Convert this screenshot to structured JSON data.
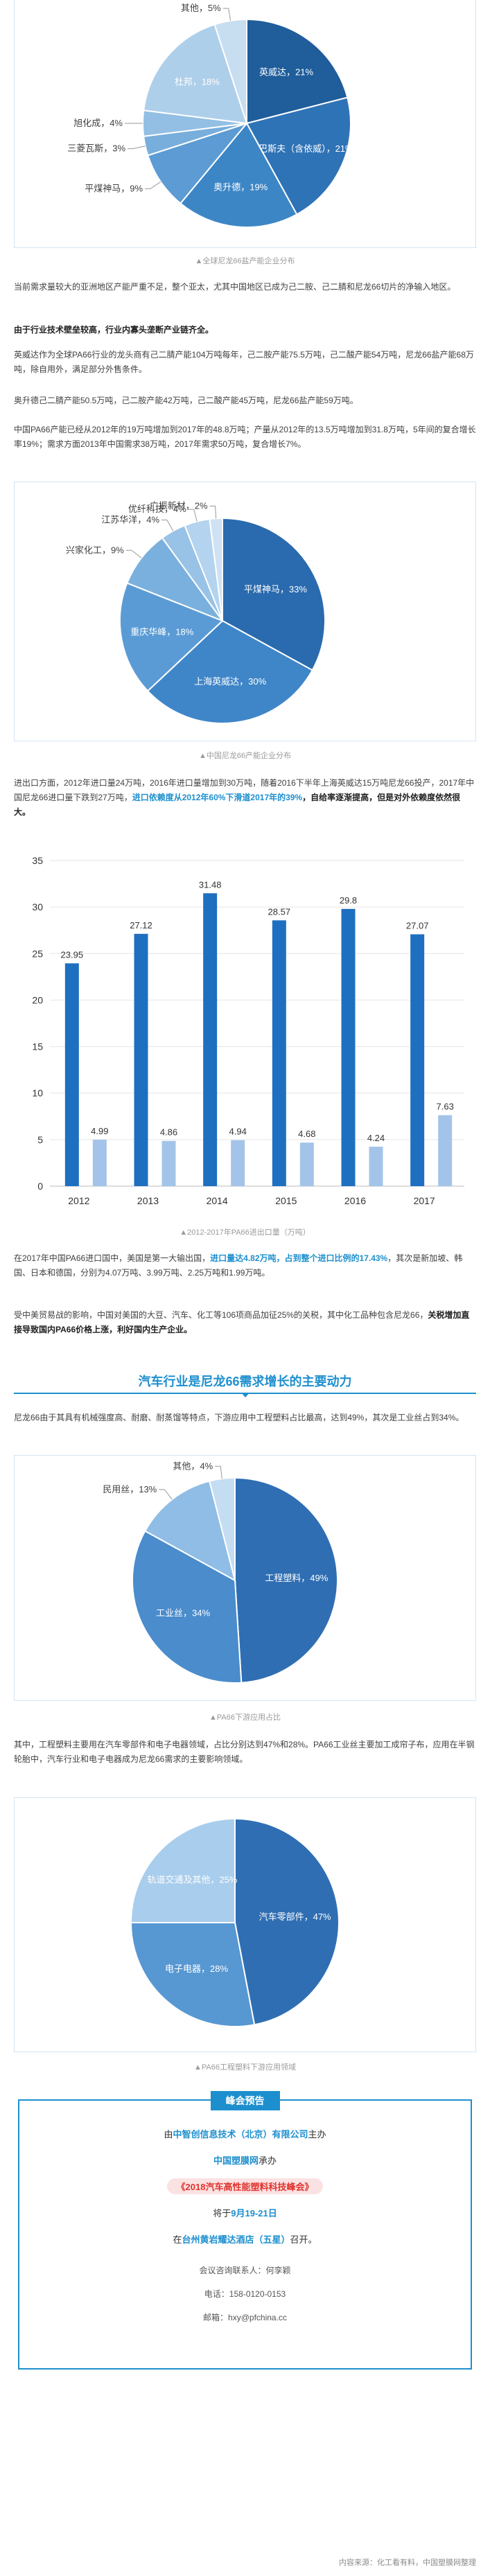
{
  "charts": {
    "pie1": {
      "caption": "▲全球尼龙66盐产能企业分布",
      "slices": [
        {
          "label": "英威达，21%",
          "value": 21,
          "color": "#1f5d9b"
        },
        {
          "label": "巴斯夫（含依威），21%",
          "value": 21,
          "color": "#2f73b7"
        },
        {
          "label": "奥升德，19%",
          "value": 19,
          "color": "#3d86c6"
        },
        {
          "label": "平煤神马，9%",
          "value": 9,
          "color": "#5c9bd3"
        },
        {
          "label": "三菱瓦斯，3%",
          "value": 3,
          "color": "#78aedc"
        },
        {
          "label": "旭化成，4%",
          "value": 4,
          "color": "#92bfe3"
        },
        {
          "label": "杜邦，18%",
          "value": 18,
          "color": "#aecfea"
        },
        {
          "label": "其他，5%",
          "value": 5,
          "color": "#c7def1"
        }
      ]
    },
    "pie2": {
      "caption": "▲中国尼龙66产能企业分布",
      "slices": [
        {
          "label": "平煤神马，33%",
          "value": 33,
          "color": "#2a6aae"
        },
        {
          "label": "上海英威达，30%",
          "value": 30,
          "color": "#3f86c8"
        },
        {
          "label": "重庆华峰，18%",
          "value": 18,
          "color": "#5a9bd5"
        },
        {
          "label": "兴家化工，9%",
          "value": 9,
          "color": "#7ab0de"
        },
        {
          "label": "江苏华洋，4%",
          "value": 4,
          "color": "#98c3e6"
        },
        {
          "label": "优纤科技，4%",
          "value": 4,
          "color": "#b3d3ee"
        },
        {
          "label": "广振新材，2%",
          "value": 2,
          "color": "#cfe2f4"
        }
      ]
    },
    "pie3": {
      "caption": "▲PA66下游应用占比",
      "slices": [
        {
          "label": "工程塑料，49%",
          "value": 49,
          "color": "#2f6eb3"
        },
        {
          "label": "工业丝，34%",
          "value": 34,
          "color": "#4a8ccc"
        },
        {
          "label": "民用丝，13%",
          "value": 13,
          "color": "#8fbde5"
        },
        {
          "label": "其他，4%",
          "value": 4,
          "color": "#c5ddf2"
        }
      ]
    },
    "pie4": {
      "caption": "▲PA66工程塑料下游应用领域",
      "slices": [
        {
          "label": "汽车零部件，47%",
          "value": 47,
          "color": "#2f6eb3"
        },
        {
          "label": "电子电器，28%",
          "value": 28,
          "color": "#5797d2"
        },
        {
          "label": "轨道交通及其他，25%",
          "value": 25,
          "color": "#a9cdec"
        }
      ]
    }
  },
  "chart_data": [
    {
      "type": "pie",
      "title": "",
      "categories": [
        "英威达",
        "巴斯夫（含依威）",
        "奥升德",
        "平煤神马",
        "三菱瓦斯",
        "旭化成",
        "杜邦",
        "其他"
      ],
      "values": [
        21,
        21,
        19,
        9,
        3,
        4,
        18,
        5
      ]
    },
    {
      "type": "pie",
      "title": "",
      "categories": [
        "平煤神马",
        "上海英威达",
        "重庆华峰",
        "兴家化工",
        "江苏华洋",
        "优纤科技",
        "广振新材"
      ],
      "values": [
        33,
        30,
        18,
        9,
        4,
        4,
        2
      ]
    },
    {
      "type": "bar",
      "title": "",
      "categories": [
        "2012",
        "2013",
        "2014",
        "2015",
        "2016",
        "2017"
      ],
      "series": [
        {
          "name": "",
          "values": [
            23.95,
            27.12,
            31.48,
            28.57,
            29.8,
            27.07
          ],
          "color": "#1f6fc0"
        },
        {
          "name": "",
          "values": [
            4.99,
            4.86,
            4.94,
            4.68,
            4.24,
            7.63
          ],
          "color": "#a3c4e8"
        }
      ],
      "ylim": [
        0,
        35
      ],
      "yticks": [
        0,
        5,
        10,
        15,
        20,
        25,
        30,
        35
      ],
      "caption": "▲2012-2017年PA66进出口量（万吨）"
    },
    {
      "type": "pie",
      "title": "",
      "categories": [
        "工程塑料",
        "工业丝",
        "民用丝",
        "其他"
      ],
      "values": [
        49,
        34,
        13,
        4
      ]
    },
    {
      "type": "pie",
      "title": "",
      "categories": [
        "汽车零部件",
        "电子电器",
        "轨道交通及其他"
      ],
      "values": [
        47,
        28,
        25
      ]
    }
  ],
  "text": {
    "p1": "当前需求量较大的亚洲地区产能严重不足，整个亚太，尤其中国地区已成为己二胺、己二腈和尼龙66切片的净输入地区。",
    "p2_bold": "由于行业技术壁垒较高，行业内寡头垄断产业链齐全。",
    "p3": "英威达作为全球PA66行业的龙头商有己二腈产能104万吨每年，己二胺产能75.5万吨，己二酸产能54万吨，尼龙66盐产能68万吨，除自用外，满足部分外售条件。",
    "p4": "奥升德己二腈产能50.5万吨，己二胺产能42万吨，己二酸产能45万吨，尼龙66盐产能59万吨。",
    "p5": "中国PA66产能已经从2012年的19万吨增加到2017年的48.8万吨；产量从2012年的13.5万吨增加到31.8万吨，5年间的复合增长率19%；需求方面2013年中国需求38万吨，2017年需求50万吨，复合增长7%。",
    "p6_a": "进出口方面，2012年进口量24万吨，2016年进口量增加到30万吨，随着2016下半年上海英威达15万吨尼龙66投产，2017年中国尼龙66进口量下跌到27万吨，",
    "p6_hl": "进口依赖度从2012年60%下滑道2017年的39%",
    "p6_b": "，自给率逐渐提高，但是对外依赖度依然很大。",
    "p7_a": "在2017年中国PA66进口国中，美国是第一大输出国，",
    "p7_hl": "进口量达4.82万吨，占到整个进口比例的17.43%",
    "p7_b": "，其次是新加坡、韩国、日本和德国，分别为4.07万吨、3.99万吨、2.25万吨和1.99万吨。",
    "p8_a": "受中美贸易战的影响，中国对美国的大豆、汽车、化工等106项商品加征25%的关税，其中化工品种包含尼龙66，",
    "p8_b": "关税增加直接导致国内PA66价格上涨，利好国内生产企业。",
    "section_title": "汽车行业是尼龙66需求增长的主要动力",
    "p9": "尼龙66由于其具有机械强度高、耐磨、耐蒸馏等特点，下游应用中工程塑料占比最高，达到49%，其次是工业丝占到34%。",
    "p10": "其中，工程塑料主要用在汽车零部件和电子电器领域，占比分别达到47%和28%。PA66工业丝主要加工成帘子布，应用在半钢轮胎中，汽车行业和电子电器成为尼龙66需求的主要影响领域。"
  },
  "promo": {
    "badge": "峰会预告",
    "line1_a": "由",
    "line1_b": "中智创信息技术（北京）有限公司",
    "line1_c": "主办",
    "line2_a": "中国塑膜网",
    "line2_b": "承办",
    "line3": "《2018汽车高性能塑料科技峰会》",
    "line4_a": "将于",
    "line4_b": "9月19-21日",
    "line5_a": "在",
    "line5_b": "台州黄岩耀达酒店（五星）",
    "line5_c": "召开。",
    "contact": "会议咨询联系人：何孪颖",
    "phone": "电话：158-0120-0153",
    "email": "邮箱：hxy@pfchina.cc"
  },
  "footer": {
    "source": "内容来源：化工看有料，中国塑膜网整理"
  }
}
